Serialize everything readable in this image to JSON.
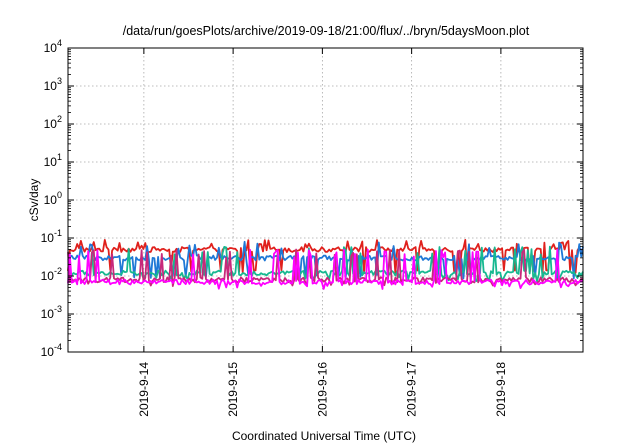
{
  "chart_data": {
    "type": "line",
    "title": "/data/run/goesPlots/archive/2019-09-18/21:00/flux/../bryn/5daysMoon.plot",
    "xlabel": "Coordinated Universal Time (UTC)",
    "ylabel": "cSv/day",
    "x_range_days": [
      13.15,
      18.92
    ],
    "x_ticks": [
      {
        "label": "2019-9-14",
        "day": 14
      },
      {
        "label": "2019-9-15",
        "day": 15
      },
      {
        "label": "2019-9-16",
        "day": 16
      },
      {
        "label": "2019-9-17",
        "day": 17
      },
      {
        "label": "2019-9-18",
        "day": 18
      }
    ],
    "y_scale": "log",
    "y_ticks": [
      {
        "base": "10",
        "exp": "4",
        "value": 10000
      },
      {
        "base": "10",
        "exp": "3",
        "value": 1000
      },
      {
        "base": "10",
        "exp": "2",
        "value": 100
      },
      {
        "base": "10",
        "exp": "1",
        "value": 10
      },
      {
        "base": "10",
        "exp": "0",
        "value": 1
      },
      {
        "base": "10",
        "exp": "-1",
        "value": 0.1
      },
      {
        "base": "10",
        "exp": "-2",
        "value": 0.01
      },
      {
        "base": "10",
        "exp": "-3",
        "value": 0.001
      },
      {
        "base": "10",
        "exp": "-4",
        "value": 0.0001
      }
    ],
    "ylim": [
      0.0001,
      10000
    ],
    "grid": true,
    "series": [
      {
        "color": "#e0201c",
        "base": 0.05,
        "spike_max": 0.09,
        "dip_min": 0.012
      },
      {
        "color": "#1f78d6",
        "base": 0.03,
        "spike_max": 0.08,
        "dip_min": 0.009
      },
      {
        "color": "#17b890",
        "base": 0.012,
        "spike_max": 0.06,
        "dip_min": 0.008
      },
      {
        "color": "#c8287a",
        "base": 0.008,
        "spike_max": 0.05,
        "dip_min": 0.006
      },
      {
        "color": "#ff00ff",
        "base": 0.007,
        "spike_max": 0.05,
        "dip_min": 0.005
      }
    ]
  }
}
